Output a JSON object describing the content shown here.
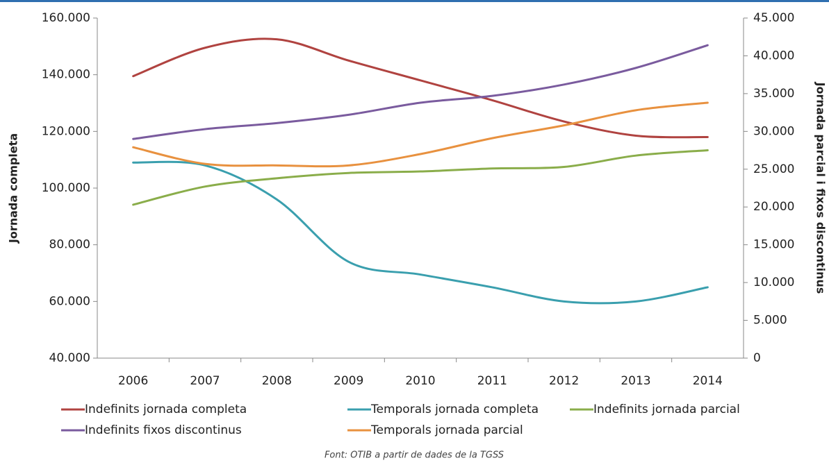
{
  "chart_data": {
    "type": "line",
    "categories": [
      "2006",
      "2007",
      "2008",
      "2009",
      "2010",
      "2011",
      "2012",
      "2013",
      "2014"
    ],
    "ylabel": "Jornada completa",
    "y2label": "Jornada parcial i fixos discontinus",
    "ylim": [
      40000,
      160000
    ],
    "yticks": [
      {
        "value": 40000,
        "label": "40.000"
      },
      {
        "value": 60000,
        "label": "60.000"
      },
      {
        "value": 80000,
        "label": "80.000"
      },
      {
        "value": 100000,
        "label": "100.000"
      },
      {
        "value": 120000,
        "label": "120.000"
      },
      {
        "value": 140000,
        "label": "140.000"
      },
      {
        "value": 160000,
        "label": "160.000"
      }
    ],
    "y2lim": [
      0,
      45000
    ],
    "y2ticks": [
      0,
      {
        "value": 5000,
        "label": "5.000"
      },
      {
        "value": 10000,
        "label": "10.000"
      },
      {
        "value": 15000,
        "label": "15.000"
      },
      {
        "value": 20000,
        "label": "20.000"
      },
      {
        "value": 25000,
        "label": "25.000"
      },
      {
        "value": 30000,
        "label": "30.000"
      },
      {
        "value": 35000,
        "label": "35.000"
      },
      {
        "value": 40000,
        "label": "40.000"
      },
      {
        "value": 45000,
        "label": "45.000"
      }
    ],
    "series": [
      {
        "name": "Indefinits jornada completa",
        "color": "#b04340",
        "values": [
          139500,
          149500,
          152500,
          145000,
          138000,
          131000,
          123500,
          118500,
          118000
        ]
      },
      {
        "name": "Temporals jornada completa",
        "color": "#3a9fae",
        "values": [
          109000,
          108000,
          96000,
          74000,
          69500,
          65000,
          60000,
          60000,
          65000
        ]
      },
      {
        "name": "Indefinits jornada parcial",
        "color": "#8aad4a",
        "axis": "y2",
        "values": [
          20300,
          22700,
          23800,
          24500,
          24700,
          25100,
          25300,
          26800,
          27500
        ]
      },
      {
        "name": "Indefinits fixos discontinus",
        "color": "#7a5b9e",
        "axis": "y2",
        "values": [
          29000,
          30300,
          31100,
          32200,
          33800,
          34700,
          36200,
          38400,
          41400
        ]
      },
      {
        "name": "Temporals jornada parcial",
        "color": "#e8913f",
        "axis": "y2",
        "values": [
          27900,
          25700,
          25500,
          25500,
          27000,
          29100,
          30800,
          32800,
          33800
        ]
      }
    ],
    "source": "Font: OTIB a partir de dades de la TGSS"
  }
}
